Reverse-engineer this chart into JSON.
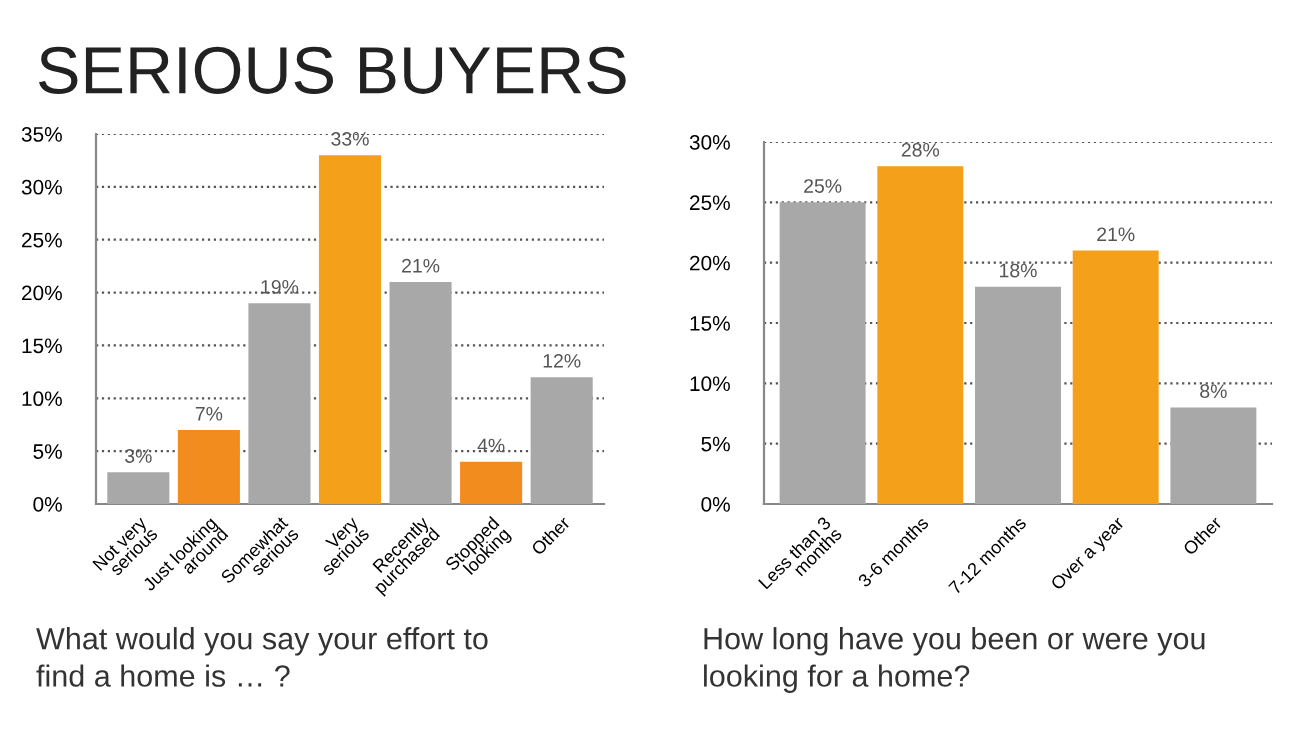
{
  "chart_data": [
    {
      "type": "bar",
      "title": "SERIOUS BUYERS",
      "xlabel": "What would you say your effort to\nfind a home is … ?",
      "categories": [
        "Not very\nserious",
        "Just looking\naround",
        "Somewhat\nserious",
        "Very\nserious",
        "Recently\npurchased",
        "Stopped\nlooking",
        "Other"
      ],
      "values": [
        3,
        7,
        19,
        33,
        21,
        4,
        12
      ],
      "colors": [
        "#a8a8a8",
        "#f28c1e",
        "#a8a8a8",
        "#f5a01a",
        "#a8a8a8",
        "#f28c1e",
        "#a8a8a8"
      ],
      "value_labels": [
        "3%",
        "7%",
        "19%",
        "33%",
        "21%",
        "4%",
        "12%"
      ],
      "ylim": [
        0,
        35
      ],
      "yticks": [
        {
          "value": 0,
          "label": "0%"
        },
        {
          "value": 5,
          "label": "5%"
        },
        {
          "value": 10,
          "label": "10%"
        },
        {
          "value": 15,
          "label": "15%"
        },
        {
          "value": 20,
          "label": "20%"
        },
        {
          "value": 25,
          "label": "25%"
        },
        {
          "value": 30,
          "label": "30%"
        },
        {
          "value": 35,
          "label": "35%"
        }
      ],
      "grid": "y"
    },
    {
      "type": "bar",
      "xlabel": "How long have you been or were you\nlooking for a home?",
      "categories": [
        "Less than 3\nmonths",
        "3-6 months",
        "7-12 months",
        "Over a year",
        "Other"
      ],
      "values": [
        25,
        28,
        18,
        21,
        8
      ],
      "colors": [
        "#a8a8a8",
        "#f5a01a",
        "#a8a8a8",
        "#f5a01a",
        "#a8a8a8"
      ],
      "value_labels": [
        "25%",
        "28%",
        "18%",
        "21%",
        "8%"
      ],
      "ylim": [
        0,
        30
      ],
      "yticks": [
        {
          "value": 0,
          "label": "0%"
        },
        {
          "value": 5,
          "label": "5%"
        },
        {
          "value": 10,
          "label": "10%"
        },
        {
          "value": 15,
          "label": "15%"
        },
        {
          "value": 20,
          "label": "20%"
        },
        {
          "value": 25,
          "label": "25%"
        },
        {
          "value": 30,
          "label": "30%"
        }
      ],
      "grid": "y"
    }
  ]
}
